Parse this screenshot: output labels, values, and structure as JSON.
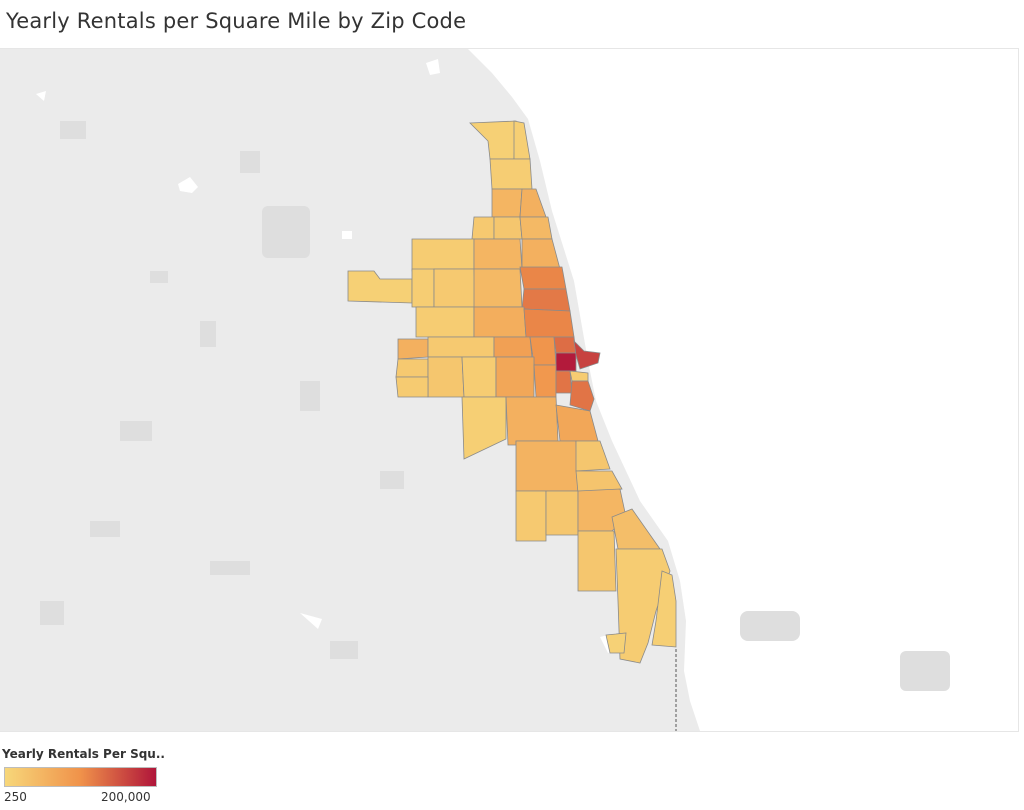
{
  "title": "Yearly Rentals per Square Mile by Zip Code",
  "legend": {
    "title": "Yearly Rentals Per Squ..",
    "min_label": "250",
    "max_label": "200,000",
    "color_low": "#f7d77a",
    "color_mid": "#f0924a",
    "color_high": "#b0153a"
  },
  "colors": {
    "land": "#ebebeb",
    "lake": "#ffffff",
    "park": "#dfdfdf",
    "zip_border": "#8a8a8a"
  }
}
